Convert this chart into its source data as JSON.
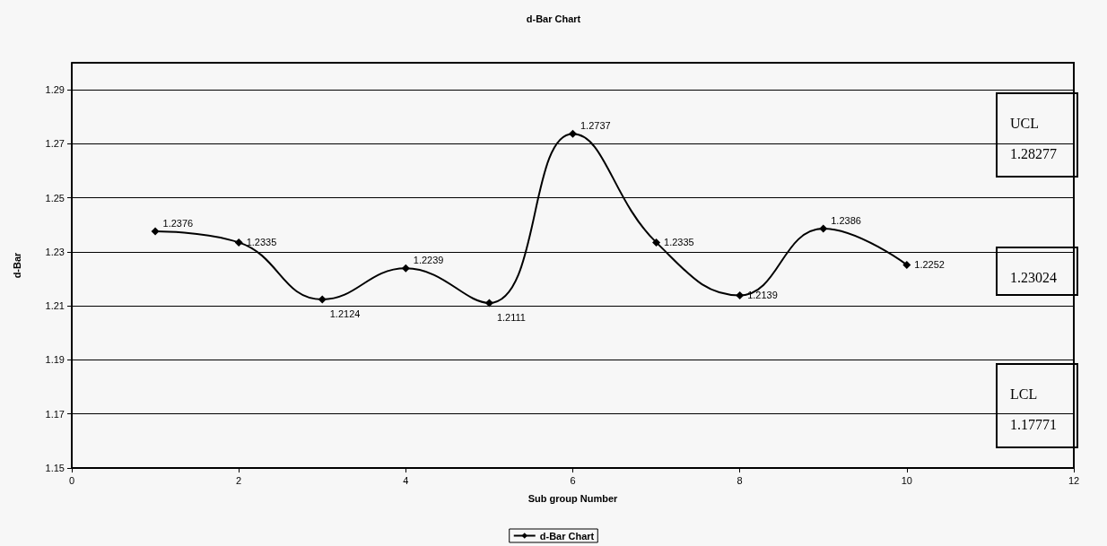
{
  "chart_data": {
    "type": "line",
    "title": "d-Bar Chart",
    "xlabel": "Sub group Number",
    "ylabel": "d-Bar",
    "x": [
      1,
      2,
      3,
      4,
      5,
      6,
      7,
      8,
      9,
      10
    ],
    "series": [
      {
        "name": "d-Bar Chart",
        "color": "#000000",
        "values": [
          1.2376,
          1.2335,
          1.2124,
          1.2239,
          1.2111,
          1.2737,
          1.2335,
          1.2139,
          1.2386,
          1.2252
        ]
      }
    ],
    "xlim": [
      0,
      12
    ],
    "xticks": [
      0,
      2,
      4,
      6,
      8,
      10,
      12
    ],
    "ylim": [
      1.15,
      1.3
    ],
    "yticks": [
      1.15,
      1.17,
      1.19,
      1.21,
      1.23,
      1.25,
      1.27,
      1.29
    ],
    "grid": "y",
    "legend": "bottom",
    "marker": "diamond",
    "line_style": "solid",
    "data_labels": true,
    "annotations": [
      "UCL\n1.28277",
      "1.23024",
      "LCL\n1.17771"
    ]
  }
}
